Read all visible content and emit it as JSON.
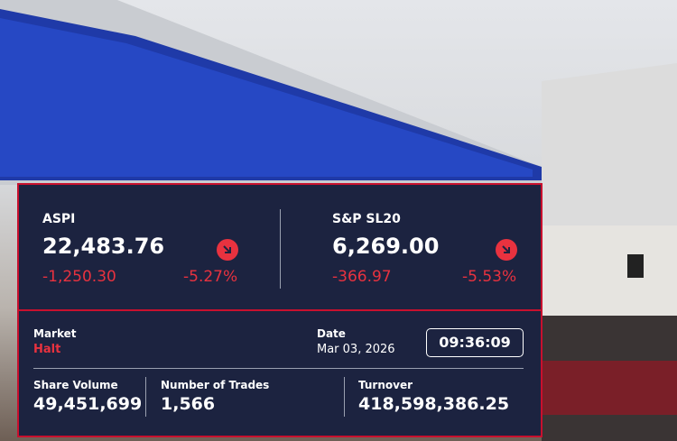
{
  "indices": [
    {
      "name": "ASPI",
      "value": "22,483.76",
      "change": "-1,250.30",
      "change_percent": "-5.27%"
    },
    {
      "name": "S&P SL20",
      "value": "6,269.00",
      "change": "-366.97",
      "change_percent": "-5.53%"
    }
  ],
  "market": {
    "label": "Market",
    "status": "Halt"
  },
  "date": {
    "label": "Date",
    "value": "Mar 03, 2026"
  },
  "time": "09:36:09",
  "stats": [
    {
      "label": "Share Volume",
      "value": "49,451,699"
    },
    {
      "label": "Number of Trades",
      "value": "1,566"
    },
    {
      "label": "Turnover",
      "value": "418,598,386.25"
    }
  ]
}
